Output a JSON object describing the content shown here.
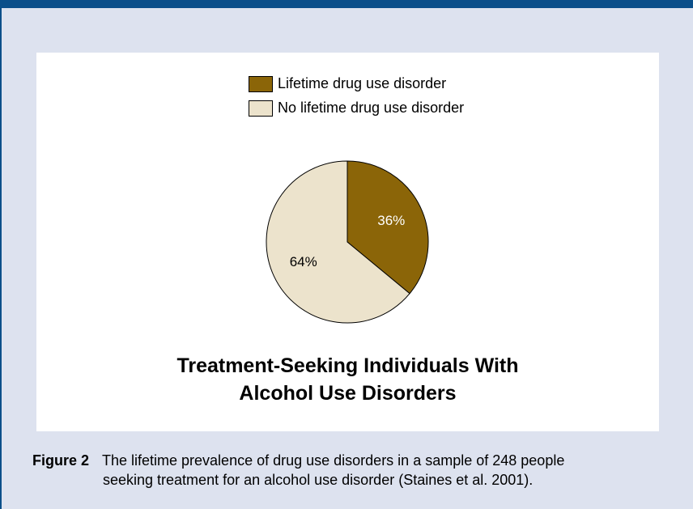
{
  "chart_data": {
    "type": "pie",
    "title": [
      "Treatment-Seeking Individuals With",
      "Alcohol Use Disorders"
    ],
    "slices": [
      {
        "name": "Lifetime drug use disorder",
        "value": 36,
        "label": "36%",
        "color": "#8b6508",
        "label_color": "#ffffff"
      },
      {
        "name": "No lifetime drug use disorder",
        "value": 64,
        "label": "64%",
        "color": "#ece3cc",
        "label_color": "#000000"
      }
    ],
    "legend_position": "top-center"
  },
  "caption": {
    "label": "Figure 2",
    "line1": "The lifetime prevalence of drug use disorders in a sample of 248 people",
    "line2": "seeking treatment for an alcohol use disorder (Staines et al. 2001)."
  }
}
